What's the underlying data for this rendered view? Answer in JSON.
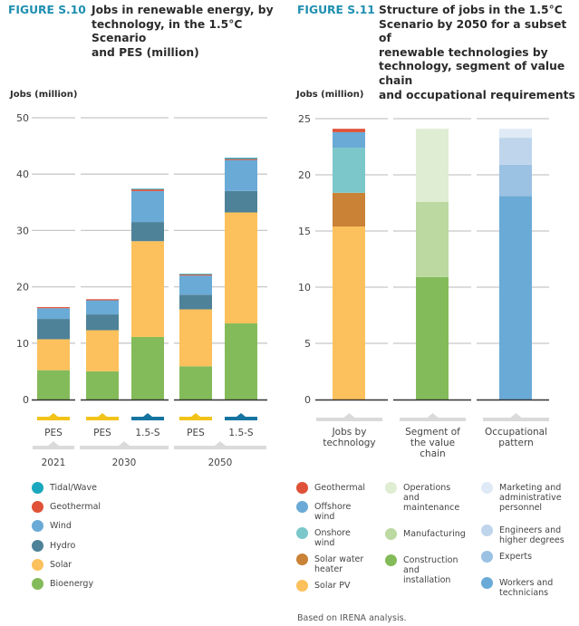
{
  "figures": {
    "left": {
      "number": "FIGURE S.10",
      "title": "Jobs in renewable energy, by technology, in the 1.5°C Scenario and PES (million)",
      "title_lines": [
        "Jobs in renewable energy, by",
        "technology, in the 1.5°C Scenario",
        "and PES (million)"
      ]
    },
    "right": {
      "number": "FIGURE S.11",
      "title": "Structure of jobs in the 1.5°C Scenario by 2050 for a subset of renewable technologies by technology, segment of value chain and occupational requirements",
      "title_lines": [
        "Structure of jobs in the 1.5°C",
        "Scenario by 2050 for a subset of",
        "renewable technologies by",
        "technology, segment of value chain",
        "and occupational requirements"
      ]
    }
  },
  "source_note": "Based on IRENA analysis.",
  "chart_data": [
    {
      "type": "bar",
      "stacked": true,
      "title": "Jobs in renewable energy, by technology, in the 1.5°C Scenario and PES (million)",
      "ylabel": "Jobs (million)",
      "xlabel": "",
      "ylim": [
        0,
        50
      ],
      "yticks": [
        0,
        10,
        20,
        30,
        40,
        50
      ],
      "grid": true,
      "legend_position": "bottom-left",
      "categories": [
        "PES",
        "PES",
        "1.5-S",
        "PES",
        "1.5-S"
      ],
      "category_groups": [
        {
          "label": "2021",
          "members": [
            0
          ]
        },
        {
          "label": "2030",
          "members": [
            1,
            2
          ]
        },
        {
          "label": "2050",
          "members": [
            3,
            4
          ]
        }
      ],
      "scenario_marker_colors": {
        "PES": "#f2c318",
        "1.5-S": "#1574a0"
      },
      "series": [
        {
          "name": "Bioenergy",
          "color": "#84bb5a",
          "values": [
            5.2,
            5.0,
            11.1,
            5.9,
            13.5
          ]
        },
        {
          "name": "Solar",
          "color": "#fcc15c",
          "values": [
            5.5,
            7.3,
            17.0,
            10.1,
            19.7
          ]
        },
        {
          "name": "Hydro",
          "color": "#4e8299",
          "values": [
            3.6,
            2.8,
            3.4,
            2.6,
            3.8
          ]
        },
        {
          "name": "Wind",
          "color": "#6aaad6",
          "values": [
            1.9,
            2.5,
            5.5,
            3.4,
            5.5
          ]
        },
        {
          "name": "Geothermal",
          "color": "#df5238",
          "values": [
            0.2,
            0.2,
            0.3,
            0.2,
            0.2
          ]
        },
        {
          "name": "Tidal/Wave",
          "color": "#19a8bd",
          "values": [
            0.0,
            0.0,
            0.1,
            0.1,
            0.2
          ]
        }
      ],
      "legend": [
        "Tidal/Wave",
        "Geothermal",
        "Wind",
        "Hydro",
        "Solar",
        "Bioenergy"
      ]
    },
    {
      "type": "bar",
      "stacked": true,
      "title": "Structure of jobs in the 1.5°C Scenario by 2050 for a subset of renewable technologies by technology, segment of value chain and occupational requirements",
      "ylabel": "Jobs (million)",
      "xlabel": "",
      "ylim": [
        0,
        25
      ],
      "yticks": [
        0,
        5,
        10,
        15,
        20,
        25
      ],
      "grid": true,
      "legend_position": "bottom",
      "categories": [
        "Jobs by\ntechnology",
        "Segment of\nthe value\nchain",
        "Occupational\npattern"
      ],
      "stacks": [
        {
          "category": "Jobs by technology",
          "segments": [
            {
              "name": "Solar PV",
              "color": "#fcc15c",
              "value": 15.4
            },
            {
              "name": "Solar water heater",
              "color": "#c98236",
              "value": 3.0
            },
            {
              "name": "Onshore wind",
              "color": "#7bc7c9",
              "value": 4.0
            },
            {
              "name": "Offshore wind",
              "color": "#6aaad6",
              "value": 1.4
            },
            {
              "name": "Geothermal",
              "color": "#df5238",
              "value": 0.3
            }
          ]
        },
        {
          "category": "Segment of the value chain",
          "segments": [
            {
              "name": "Construction and installation",
              "color": "#84bb5a",
              "value": 10.9
            },
            {
              "name": "Manufacturing",
              "color": "#bbd9a0",
              "value": 6.7
            },
            {
              "name": "Operations and maintenance",
              "color": "#dfedd3",
              "value": 6.5
            }
          ]
        },
        {
          "category": "Occupational pattern",
          "segments": [
            {
              "name": "Workers and technicians",
              "color": "#6aaad6",
              "value": 18.1
            },
            {
              "name": "Experts",
              "color": "#9bc1e3",
              "value": 2.8
            },
            {
              "name": "Engineers and higher degrees",
              "color": "#bed5ec",
              "value": 2.4
            },
            {
              "name": "Marketing and administrative personnel",
              "color": "#dfeaf6",
              "value": 0.8
            }
          ]
        }
      ],
      "legend_columns": [
        [
          {
            "label": "Geothermal",
            "color": "#df5238"
          },
          {
            "label": "Offshore\nwind",
            "color": "#6aaad6"
          },
          {
            "label": "Onshore\nwind",
            "color": "#7bc7c9"
          },
          {
            "label": "Solar water\nheater",
            "color": "#c98236"
          },
          {
            "label": "Solar PV",
            "color": "#fcc15c"
          }
        ],
        [
          {
            "label": "Operations\nand\nmaintenance",
            "color": "#dfedd3"
          },
          {
            "label": "Manufacturing",
            "color": "#bbd9a0"
          },
          {
            "label": "Construction\nand\ninstallation",
            "color": "#84bb5a"
          }
        ],
        [
          {
            "label": "Marketing and\nadministrative\npersonnel",
            "color": "#dfeaf6"
          },
          {
            "label": "Engineers and\nhigher degrees",
            "color": "#bed5ec"
          },
          {
            "label": "Experts",
            "color": "#9bc1e3"
          },
          {
            "label": "Workers and\ntechnicians",
            "color": "#6aaad6"
          }
        ]
      ]
    }
  ],
  "legend_left": [
    {
      "label": "Tidal/Wave",
      "color": "#19a8bd"
    },
    {
      "label": "Geothermal",
      "color": "#df5238"
    },
    {
      "label": "Wind",
      "color": "#6aaad6"
    },
    {
      "label": "Hydro",
      "color": "#4e8299"
    },
    {
      "label": "Solar",
      "color": "#fcc15c"
    },
    {
      "label": "Bioenergy",
      "color": "#84bb5a"
    }
  ]
}
